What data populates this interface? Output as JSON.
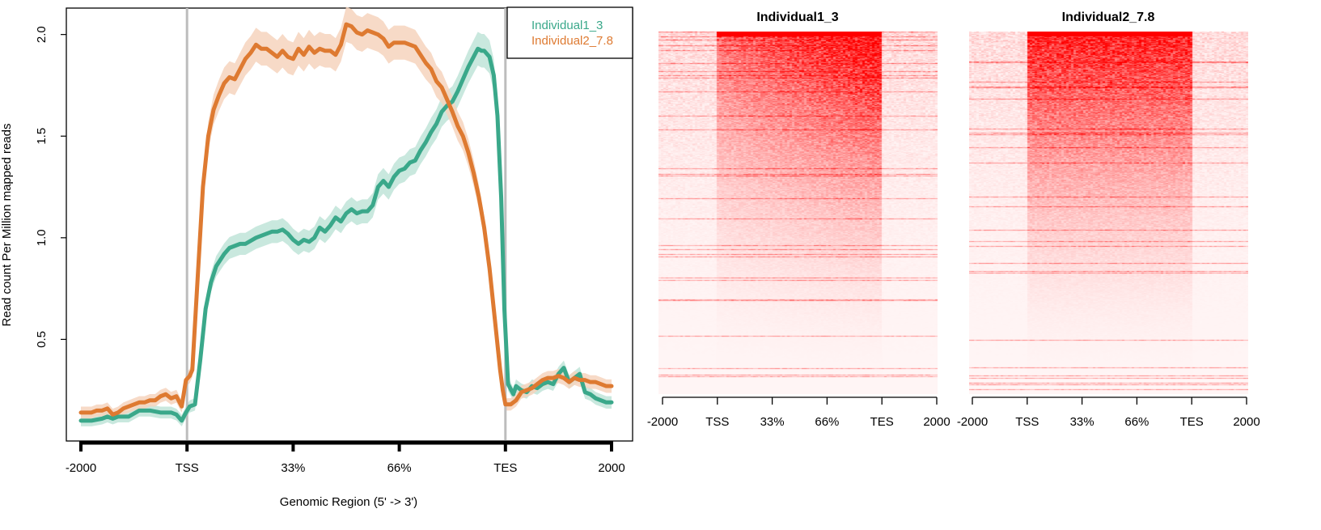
{
  "chart_data": [
    {
      "type": "line",
      "title": "",
      "xlabel": "Genomic Region (5' -> 3')",
      "ylabel": "Read count Per Million mapped reads",
      "xlim": [
        0,
        100
      ],
      "ylim": [
        0.0,
        2.13
      ],
      "x_ticks": [
        {
          "pos": 0,
          "label": "-2000"
        },
        {
          "pos": 20,
          "label": "TSS"
        },
        {
          "pos": 40,
          "label": "33%"
        },
        {
          "pos": 60,
          "label": "66%"
        },
        {
          "pos": 80,
          "label": "TES"
        },
        {
          "pos": 100,
          "label": "2000"
        }
      ],
      "y_ticks": [
        {
          "value": 0.5,
          "label": "0.5"
        },
        {
          "value": 1.0,
          "label": "1.0"
        },
        {
          "value": 1.5,
          "label": "1.5"
        },
        {
          "value": 2.0,
          "label": "2.0"
        }
      ],
      "vlines": [
        20,
        80
      ],
      "legend_position": "top-right",
      "series": [
        {
          "name": "Individual1_3",
          "color": "#3aa88a",
          "band_color": "#bfe4d8",
          "points": [
            [
              0,
              0.1
            ],
            [
              2,
              0.1
            ],
            [
              4,
              0.11
            ],
            [
              5,
              0.12
            ],
            [
              6,
              0.11
            ],
            [
              7,
              0.12
            ],
            [
              9,
              0.12
            ],
            [
              11,
              0.15
            ],
            [
              13,
              0.15
            ],
            [
              15,
              0.14
            ],
            [
              17,
              0.14
            ],
            [
              18,
              0.13
            ],
            [
              19,
              0.1
            ],
            [
              19.8,
              0.14
            ],
            [
              20.5,
              0.17
            ],
            [
              21.5,
              0.18
            ],
            [
              22.5,
              0.4
            ],
            [
              23.5,
              0.65
            ],
            [
              24.5,
              0.78
            ],
            [
              25.5,
              0.86
            ],
            [
              27,
              0.92
            ],
            [
              28,
              0.95
            ],
            [
              30,
              0.97
            ],
            [
              31,
              0.97
            ],
            [
              33,
              1.0
            ],
            [
              35,
              1.02
            ],
            [
              36,
              1.03
            ],
            [
              37,
              1.03
            ],
            [
              38,
              1.04
            ],
            [
              39,
              1.02
            ],
            [
              40,
              0.99
            ],
            [
              41,
              0.97
            ],
            [
              42,
              0.99
            ],
            [
              43,
              0.98
            ],
            [
              44,
              1.0
            ],
            [
              45,
              1.05
            ],
            [
              46,
              1.03
            ],
            [
              47,
              1.06
            ],
            [
              48,
              1.1
            ],
            [
              49,
              1.08
            ],
            [
              50,
              1.12
            ],
            [
              51,
              1.14
            ],
            [
              52,
              1.12
            ],
            [
              53,
              1.13
            ],
            [
              54,
              1.13
            ],
            [
              55,
              1.16
            ],
            [
              56,
              1.25
            ],
            [
              57,
              1.28
            ],
            [
              58,
              1.25
            ],
            [
              59,
              1.3
            ],
            [
              60,
              1.33
            ],
            [
              61,
              1.34
            ],
            [
              62,
              1.37
            ],
            [
              63,
              1.38
            ],
            [
              64,
              1.43
            ],
            [
              65,
              1.47
            ],
            [
              66,
              1.52
            ],
            [
              67,
              1.56
            ],
            [
              68,
              1.62
            ],
            [
              69,
              1.65
            ],
            [
              70,
              1.67
            ],
            [
              71,
              1.72
            ],
            [
              72,
              1.78
            ],
            [
              73,
              1.84
            ],
            [
              74,
              1.89
            ],
            [
              74.8,
              1.93
            ],
            [
              75.5,
              1.92
            ],
            [
              76,
              1.92
            ],
            [
              77,
              1.89
            ],
            [
              77.8,
              1.8
            ],
            [
              78.5,
              1.6
            ],
            [
              79.2,
              1.2
            ],
            [
              79.8,
              0.65
            ],
            [
              80.5,
              0.28
            ],
            [
              81.5,
              0.23
            ],
            [
              82,
              0.27
            ],
            [
              83,
              0.25
            ],
            [
              84,
              0.24
            ],
            [
              85,
              0.27
            ],
            [
              86,
              0.26
            ],
            [
              87,
              0.28
            ],
            [
              88,
              0.29
            ],
            [
              89,
              0.28
            ],
            [
              90,
              0.33
            ],
            [
              91,
              0.36
            ],
            [
              92,
              0.29
            ],
            [
              93,
              0.31
            ],
            [
              94,
              0.33
            ],
            [
              95,
              0.24
            ],
            [
              96,
              0.23
            ],
            [
              97,
              0.21
            ],
            [
              98,
              0.2
            ],
            [
              99,
              0.19
            ],
            [
              100,
              0.19
            ]
          ]
        },
        {
          "name": "Individual2_7.8",
          "color": "#de7a31",
          "band_color": "#f6d3bd",
          "points": [
            [
              0,
              0.14
            ],
            [
              1,
              0.14
            ],
            [
              2,
              0.14
            ],
            [
              3,
              0.15
            ],
            [
              4,
              0.15
            ],
            [
              5,
              0.16
            ],
            [
              6,
              0.13
            ],
            [
              7,
              0.14
            ],
            [
              8,
              0.16
            ],
            [
              10,
              0.18
            ],
            [
              11,
              0.19
            ],
            [
              12,
              0.19
            ],
            [
              13,
              0.2
            ],
            [
              14,
              0.2
            ],
            [
              15,
              0.22
            ],
            [
              16,
              0.23
            ],
            [
              17,
              0.21
            ],
            [
              18,
              0.22
            ],
            [
              19,
              0.17
            ],
            [
              19.8,
              0.3
            ],
            [
              20.5,
              0.32
            ],
            [
              21,
              0.35
            ],
            [
              22,
              0.8
            ],
            [
              23,
              1.25
            ],
            [
              24,
              1.5
            ],
            [
              25,
              1.63
            ],
            [
              26,
              1.7
            ],
            [
              27,
              1.76
            ],
            [
              28,
              1.79
            ],
            [
              29,
              1.78
            ],
            [
              30,
              1.83
            ],
            [
              31,
              1.88
            ],
            [
              32,
              1.91
            ],
            [
              33,
              1.95
            ],
            [
              34,
              1.93
            ],
            [
              35,
              1.93
            ],
            [
              36,
              1.91
            ],
            [
              37,
              1.89
            ],
            [
              38,
              1.92
            ],
            [
              39,
              1.89
            ],
            [
              40,
              1.88
            ],
            [
              41,
              1.93
            ],
            [
              42,
              1.9
            ],
            [
              43,
              1.94
            ],
            [
              44,
              1.91
            ],
            [
              45,
              1.93
            ],
            [
              46,
              1.92
            ],
            [
              47,
              1.92
            ],
            [
              48,
              1.9
            ],
            [
              49,
              1.95
            ],
            [
              50,
              2.05
            ],
            [
              51,
              2.04
            ],
            [
              52,
              2.01
            ],
            [
              53,
              2.0
            ],
            [
              54,
              2.02
            ],
            [
              55,
              2.01
            ],
            [
              56,
              2.0
            ],
            [
              57,
              1.98
            ],
            [
              58,
              1.94
            ],
            [
              59,
              1.96
            ],
            [
              60,
              1.96
            ],
            [
              61,
              1.96
            ],
            [
              62,
              1.95
            ],
            [
              63,
              1.94
            ],
            [
              64,
              1.9
            ],
            [
              65,
              1.86
            ],
            [
              66,
              1.83
            ],
            [
              67,
              1.77
            ],
            [
              68,
              1.74
            ],
            [
              69,
              1.68
            ],
            [
              70,
              1.62
            ],
            [
              71,
              1.55
            ],
            [
              72,
              1.5
            ],
            [
              73,
              1.42
            ],
            [
              74,
              1.32
            ],
            [
              75,
              1.2
            ],
            [
              76,
              1.05
            ],
            [
              77,
              0.85
            ],
            [
              78,
              0.6
            ],
            [
              79,
              0.35
            ],
            [
              79.5,
              0.25
            ],
            [
              80,
              0.18
            ],
            [
              81,
              0.18
            ],
            [
              82,
              0.2
            ],
            [
              83,
              0.24
            ],
            [
              84,
              0.25
            ],
            [
              85,
              0.26
            ],
            [
              86,
              0.28
            ],
            [
              87,
              0.3
            ],
            [
              88,
              0.31
            ],
            [
              89,
              0.31
            ],
            [
              90,
              0.32
            ],
            [
              91,
              0.31
            ],
            [
              92,
              0.29
            ],
            [
              93,
              0.31
            ],
            [
              94,
              0.3
            ],
            [
              95,
              0.3
            ],
            [
              96,
              0.29
            ],
            [
              97,
              0.29
            ],
            [
              98,
              0.28
            ],
            [
              99,
              0.27
            ],
            [
              100,
              0.27
            ]
          ]
        }
      ]
    },
    {
      "type": "heatmap",
      "title": "Individual1_3",
      "color_low": "#fff5f5",
      "color_high": "#ff0000",
      "x_ticks": [
        "-2000",
        "TSS",
        "33%",
        "66%",
        "TES",
        "2000"
      ]
    },
    {
      "type": "heatmap",
      "title": "Individual2_7.8",
      "color_low": "#fff5f5",
      "color_high": "#ff0000",
      "x_ticks": [
        "-2000",
        "TSS",
        "33%",
        "66%",
        "TES",
        "2000"
      ]
    }
  ]
}
